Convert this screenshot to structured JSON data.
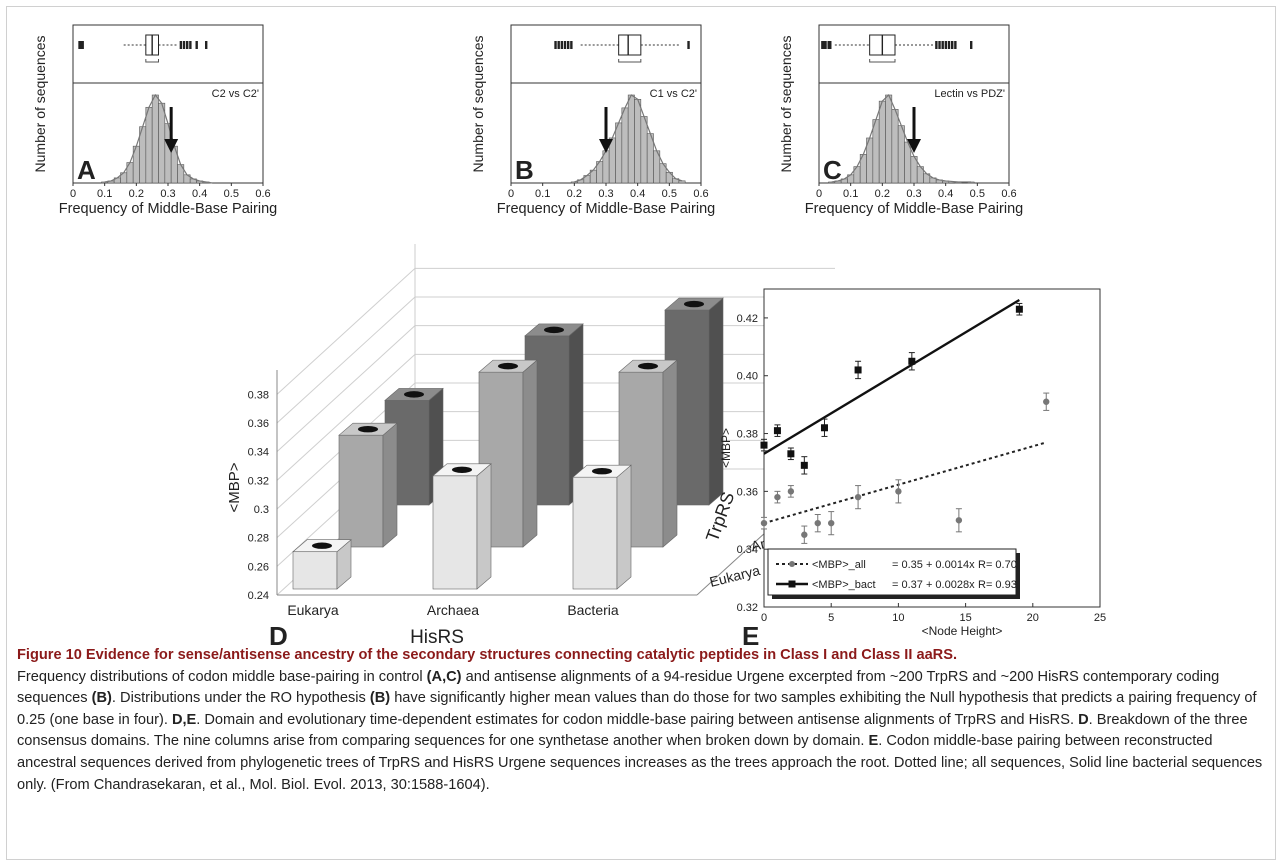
{
  "histograms": [
    {
      "letter": "A",
      "annotation": "C2 vs C2'",
      "ylabel": "Number of sequences",
      "xlabel": "Frequency of Middle-Base Pairing",
      "arrow_x": 0.31,
      "box": {
        "q1": 0.23,
        "median": 0.25,
        "q3": 0.27,
        "whisker_lo": 0.16,
        "whisker_hi": 0.33,
        "outliers_lo": [
          0.02,
          0.025,
          0.03
        ],
        "outliers_hi": [
          0.34,
          0.35,
          0.36,
          0.37,
          0.39,
          0.42
        ]
      }
    },
    {
      "letter": "B",
      "annotation": "C1 vs C2'",
      "ylabel": "Number of sequences",
      "xlabel": "Frequency of Middle-Base Pairing",
      "arrow_x": 0.3,
      "box": {
        "q1": 0.34,
        "median": 0.37,
        "q3": 0.41,
        "whisker_lo": 0.22,
        "whisker_hi": 0.53,
        "outliers_lo": [
          0.14,
          0.15,
          0.16,
          0.17,
          0.18,
          0.19
        ],
        "outliers_hi": [
          0.56
        ]
      }
    },
    {
      "letter": "C",
      "annotation": "Lectin vs PDZ'",
      "ylabel": "Number of sequences",
      "xlabel": "Frequency of Middle-Base Pairing",
      "arrow_x": 0.3,
      "box": {
        "q1": 0.16,
        "median": 0.2,
        "q3": 0.24,
        "whisker_lo": 0.05,
        "whisker_hi": 0.36,
        "outliers_lo": [
          0.01,
          0.015,
          0.02,
          0.03,
          0.035
        ],
        "outliers_hi": [
          0.37,
          0.38,
          0.39,
          0.4,
          0.41,
          0.42,
          0.43,
          0.48
        ]
      }
    }
  ],
  "hist_ticks": [
    "0",
    "0.1",
    "0.2",
    "0.3",
    "0.4",
    "0.5",
    "0.6"
  ],
  "panel_d": {
    "letter": "D",
    "xlabel": "HisRS",
    "ylabel": "<MBP>",
    "trp_label": "TrpRS"
  },
  "panel_e": {
    "letter": "E",
    "xlabel": "<Node Height>",
    "ylabel": "<MBP>",
    "legend": [
      {
        "label": "<MBP>_all",
        "eq": "= 0.35 + 0.0014x",
        "r": "R= 0.70"
      },
      {
        "label": "<MBP>_bact",
        "eq": "= 0.37 + 0.0028x",
        "r": "R= 0.93"
      }
    ]
  },
  "chart_data": [
    {
      "type": "bar",
      "panel": "A",
      "x": [
        0.1,
        0.12,
        0.14,
        0.16,
        0.18,
        0.2,
        0.22,
        0.24,
        0.26,
        0.28,
        0.3,
        0.32,
        0.34,
        0.36,
        0.38,
        0.4,
        0.42,
        0.44
      ],
      "values": [
        1,
        2,
        5,
        10,
        20,
        36,
        55,
        74,
        86,
        78,
        58,
        36,
        18,
        8,
        4,
        2,
        1,
        0
      ],
      "xlim": [
        0,
        0.6
      ],
      "xticks": [
        "0",
        "0.1",
        "0.2",
        "0.3",
        "0.4",
        "0.5",
        "0.6"
      ]
    },
    {
      "type": "bar",
      "panel": "B",
      "x": [
        0.2,
        0.22,
        0.24,
        0.26,
        0.28,
        0.3,
        0.32,
        0.34,
        0.36,
        0.38,
        0.4,
        0.42,
        0.44,
        0.46,
        0.48,
        0.5,
        0.52,
        0.54
      ],
      "values": [
        1,
        3,
        7,
        12,
        20,
        30,
        42,
        56,
        70,
        82,
        78,
        62,
        46,
        30,
        18,
        10,
        4,
        2
      ],
      "xlim": [
        0,
        0.6
      ],
      "xticks": [
        "0",
        "0.1",
        "0.2",
        "0.3",
        "0.4",
        "0.5",
        "0.6"
      ]
    },
    {
      "type": "bar",
      "panel": "C",
      "x": [
        0.04,
        0.06,
        0.08,
        0.1,
        0.12,
        0.14,
        0.16,
        0.18,
        0.2,
        0.22,
        0.24,
        0.26,
        0.28,
        0.3,
        0.32,
        0.34,
        0.36,
        0.38,
        0.4,
        0.44,
        0.48
      ],
      "values": [
        1,
        2,
        4,
        8,
        16,
        28,
        44,
        62,
        80,
        86,
        72,
        56,
        40,
        26,
        16,
        9,
        5,
        3,
        2,
        1,
        1
      ],
      "xlim": [
        0,
        0.6
      ],
      "xticks": [
        "0",
        "0.1",
        "0.2",
        "0.3",
        "0.4",
        "0.5",
        "0.6"
      ]
    },
    {
      "type": "bar",
      "panel": "D",
      "subtype": "3d-bar",
      "categories": [
        "Eukarya",
        "Archaea",
        "Bacteria"
      ],
      "series": [
        {
          "name": "Eukarya",
          "values": [
            0.266,
            0.319,
            0.318
          ]
        },
        {
          "name": "Archaea",
          "values": [
            0.318,
            0.362,
            0.362
          ]
        },
        {
          "name": "Bacteria",
          "values": [
            0.313,
            0.358,
            0.376
          ]
        }
      ],
      "ylim": [
        0.24,
        0.39
      ],
      "yticks": [
        "0.24",
        "0.26",
        "0.28",
        "0.3",
        "0.32",
        "0.34",
        "0.36",
        "0.38"
      ]
    },
    {
      "type": "scatter",
      "panel": "E",
      "xlim": [
        0,
        25
      ],
      "ylim": [
        0.32,
        0.43
      ],
      "xticks": [
        "0",
        "5",
        "10",
        "15",
        "20",
        "25"
      ],
      "yticks": [
        "0.32",
        "0.34",
        "0.36",
        "0.38",
        "0.40",
        "0.42"
      ],
      "series": [
        {
          "name": "<MBP>_all",
          "x": [
            0,
            1,
            2,
            3,
            4,
            5,
            7,
            10,
            14.5,
            21
          ],
          "y": [
            0.349,
            0.358,
            0.36,
            0.345,
            0.349,
            0.349,
            0.358,
            0.36,
            0.35,
            0.391
          ],
          "err": [
            0.002,
            0.002,
            0.002,
            0.003,
            0.003,
            0.004,
            0.004,
            0.004,
            0.004,
            0.003
          ]
        },
        {
          "name": "<MBP>_bact",
          "x": [
            0,
            1,
            2,
            3,
            4.5,
            7,
            11,
            19
          ],
          "y": [
            0.376,
            0.381,
            0.373,
            0.369,
            0.382,
            0.402,
            0.405,
            0.423
          ],
          "err": [
            0.002,
            0.002,
            0.002,
            0.003,
            0.003,
            0.003,
            0.003,
            0.002
          ]
        }
      ],
      "fits": [
        {
          "intercept": 0.349,
          "slope": 0.00133,
          "x": [
            0,
            21
          ]
        },
        {
          "intercept": 0.373,
          "slope": 0.0028,
          "x": [
            0,
            19
          ]
        }
      ]
    }
  ],
  "caption": {
    "title": "Figure 10 Evidence for sense/antisense ancestry of the secondary structures connecting catalytic peptides in Class I and Class II aaRS.",
    "p1": "Frequency distributions of codon middle base-pairing in control ",
    "b1": "(A,C)",
    "p2": " and antisense alignments of a 94-residue Urgene excerpted from ~200 TrpRS and ~200 HisRS contemporary coding sequences ",
    "b2": "(B)",
    "p3": ". Distributions under the RO hypothesis ",
    "b3": "(B)",
    "p4": " have significantly higher mean values than do those for two samples exhibiting the Null hypothesis that predicts a pairing frequency of 0.25 (one base in four). ",
    "b4": "D,E",
    "p5": ". Domain and evolutionary time-dependent estimates for codon middle-base pairing between antisense alignments of TrpRS and HisRS. ",
    "b5": "D",
    "p6": ". Breakdown of the three consensus domains. The nine columns arise from comparing sequences for one synthetase another when broken down by domain. ",
    "b6": "E",
    "p7": ". Codon middle-base pairing between reconstructed ancestral sequences derived from phylogenetic trees of TrpRS and HisRS Urgene sequences increases as the trees approach the root. Dotted line; all sequences, Solid line bacterial sequences only. (From Chandrasekaran, et al., Mol. Biol. Evol. 2013, 30:1588-1604)."
  }
}
